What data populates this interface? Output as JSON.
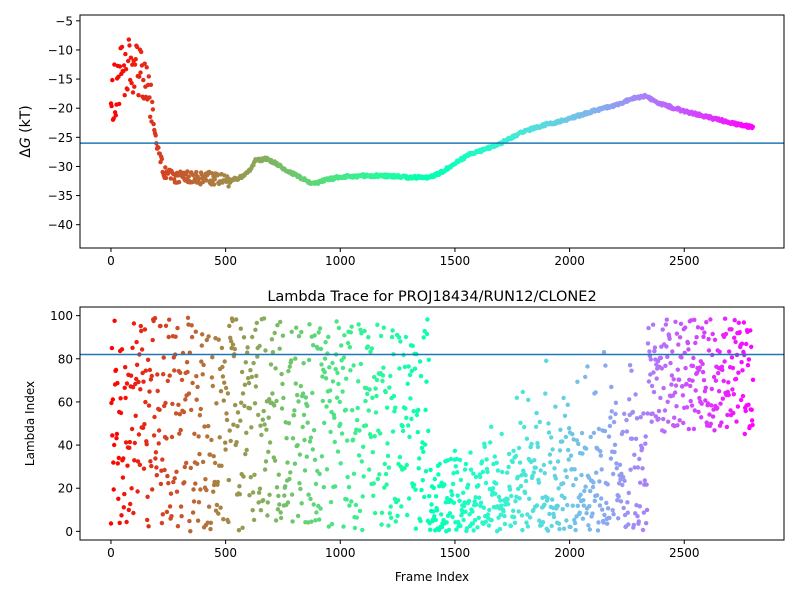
{
  "chart_data": [
    {
      "type": "scatter",
      "title": "",
      "xlabel": "",
      "ylabel": "ΔG (kT)",
      "ylabel_parts": {
        "delta": "Δ",
        "var": "G",
        "unit": " (kT)"
      },
      "xlim": [
        -135,
        2935
      ],
      "ylim": [
        -44,
        -4
      ],
      "xticks": [
        0,
        500,
        1000,
        1500,
        2000,
        2500
      ],
      "yticks": [
        -40,
        -35,
        -30,
        -25,
        -20,
        -15,
        -10,
        -5
      ],
      "hline": -26,
      "colormap": "rainbow",
      "trace": [
        [
          0,
          -18
        ],
        [
          60,
          -13
        ],
        [
          100,
          -13
        ],
        [
          130,
          -15
        ],
        [
          160,
          -15
        ],
        [
          180,
          -20
        ],
        [
          200,
          -26
        ],
        [
          230,
          -31
        ],
        [
          270,
          -32
        ],
        [
          320,
          -31.5
        ],
        [
          380,
          -32
        ],
        [
          440,
          -32
        ],
        [
          500,
          -32.5
        ],
        [
          560,
          -32
        ],
        [
          600,
          -31
        ],
        [
          630,
          -29
        ],
        [
          680,
          -28.7
        ],
        [
          720,
          -29.5
        ],
        [
          760,
          -30.5
        ],
        [
          820,
          -31.8
        ],
        [
          880,
          -33
        ],
        [
          940,
          -32.3
        ],
        [
          1000,
          -31.8
        ],
        [
          1100,
          -31.6
        ],
        [
          1200,
          -31.6
        ],
        [
          1300,
          -31.9
        ],
        [
          1400,
          -31.8
        ],
        [
          1440,
          -31
        ],
        [
          1500,
          -29.5
        ],
        [
          1560,
          -28
        ],
        [
          1650,
          -26.8
        ],
        [
          1700,
          -26
        ],
        [
          1800,
          -24
        ],
        [
          1900,
          -22.8
        ],
        [
          2000,
          -21.8
        ],
        [
          2100,
          -20.5
        ],
        [
          2200,
          -19.5
        ],
        [
          2280,
          -18.3
        ],
        [
          2330,
          -17.9
        ],
        [
          2400,
          -19.3
        ],
        [
          2500,
          -20.5
        ],
        [
          2600,
          -21.5
        ],
        [
          2700,
          -22.5
        ],
        [
          2800,
          -23.3
        ]
      ]
    },
    {
      "type": "scatter",
      "title": "Lambda Trace for PROJ18434/RUN12/CLONE2",
      "xlabel": "Frame Index",
      "ylabel": "Lambda Index",
      "xlim": [
        -135,
        2935
      ],
      "ylim": [
        -4,
        104
      ],
      "xticks": [
        0,
        500,
        1000,
        1500,
        2000,
        2500
      ],
      "yticks": [
        0,
        20,
        40,
        60,
        80,
        100
      ],
      "hline": 82,
      "colormap": "rainbow",
      "regions": [
        {
          "x": [
            0,
            1390
          ],
          "y": [
            0,
            99
          ]
        },
        {
          "x": [
            1390,
            2340
          ],
          "y": [
            0,
            99
          ],
          "trend": [
            [
              1390,
              22
            ],
            [
              2340,
              48
            ]
          ]
        },
        {
          "x": [
            2340,
            2800
          ],
          "y": [
            45,
            99
          ]
        }
      ]
    }
  ]
}
